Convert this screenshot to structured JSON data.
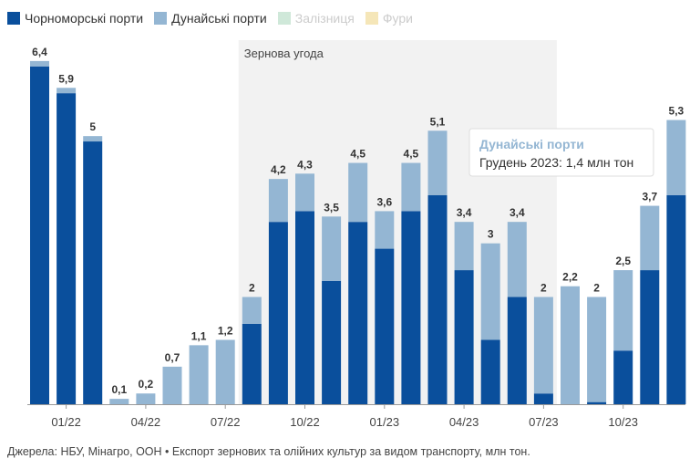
{
  "legend": [
    {
      "label": "Чорноморські порти",
      "color": "#0a4f9c",
      "active": true
    },
    {
      "label": "Дунайські порти",
      "color": "#94b6d3",
      "active": true
    },
    {
      "label": "Залізниця",
      "color": "#cfe8d9",
      "active": false
    },
    {
      "label": "Фури",
      "color": "#f5e6b8",
      "active": false
    }
  ],
  "source": "Джерела: НБУ, Мінагро, ООН • Експорт зернових та олійних культур за видом транспорту, млн тон.",
  "tooltip": {
    "title": "Дунайські порти",
    "text": "Грудень 2023: 1,4 млн тон"
  },
  "chart_data": {
    "type": "bar",
    "stacked": true,
    "categories": [
      "12/21",
      "01/22",
      "02/22",
      "03/22",
      "04/22",
      "05/22",
      "06/22",
      "07/22",
      "08/22",
      "09/22",
      "10/22",
      "11/22",
      "12/22",
      "01/23",
      "02/23",
      "03/23",
      "04/23",
      "05/23",
      "06/23",
      "07/23",
      "08/23",
      "09/23",
      "10/23",
      "11/23",
      "12/23"
    ],
    "x_tick_labels": [
      "01/22",
      "04/22",
      "07/22",
      "10/22",
      "01/23",
      "04/23",
      "07/23",
      "10/23"
    ],
    "series": [
      {
        "name": "Чорноморські порти",
        "color": "#0a4f9c",
        "values": [
          6.3,
          5.8,
          4.9,
          0,
          0,
          0,
          0,
          0,
          1.5,
          3.4,
          3.6,
          2.3,
          3.4,
          2.9,
          3.6,
          3.9,
          2.5,
          1.2,
          2.0,
          0.2,
          0,
          0.04,
          1.0,
          2.5,
          3.9
        ]
      },
      {
        "name": "Дунайські порти",
        "color": "#94b6d3",
        "values": [
          0.1,
          0.1,
          0.1,
          0.1,
          0.2,
          0.7,
          1.1,
          1.2,
          0.5,
          0.8,
          0.7,
          1.2,
          1.1,
          0.7,
          0.9,
          1.2,
          0.9,
          1.8,
          1.4,
          1.8,
          2.2,
          1.96,
          1.5,
          1.2,
          1.4
        ]
      }
    ],
    "totals": [
      "6,4",
      "5,9",
      "5",
      "0,1",
      "0,2",
      "0,7",
      "1,1",
      "1,2",
      "2",
      "4,2",
      "4,3",
      "3,5",
      "4,5",
      "3,6",
      "4,5",
      "5,1",
      "3,4",
      "3",
      "3,4",
      "2",
      "2,2",
      "2",
      "2,5",
      "3,7",
      "5,3"
    ],
    "ylim": [
      0,
      6.5
    ],
    "annotation": {
      "label": "Зернова угода",
      "from": "08/22",
      "to": "07/23"
    },
    "grid": false
  }
}
